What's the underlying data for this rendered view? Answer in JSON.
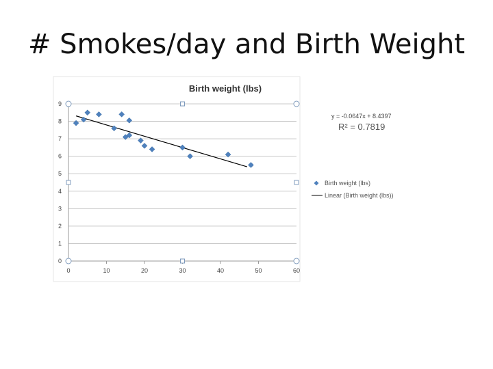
{
  "slide": {
    "title": "# Smokes/day and  Birth Weight"
  },
  "chart_data": {
    "type": "scatter",
    "title": "Birth weight (lbs)",
    "xlabel": "",
    "ylabel": "",
    "xlim": [
      0,
      60
    ],
    "ylim": [
      0,
      9
    ],
    "x_ticks": [
      "0",
      "10",
      "20",
      "30",
      "40",
      "50",
      "60"
    ],
    "y_ticks": [
      "0",
      "1",
      "2",
      "3",
      "4",
      "5",
      "6",
      "7",
      "8",
      "9"
    ],
    "grid": "horizontal",
    "series": [
      {
        "name": "Birth weight (lbs)",
        "marker": "diamond",
        "color": "#4f81bd",
        "x": [
          2,
          4,
          5,
          8,
          12,
          14,
          15,
          16,
          16,
          19,
          20,
          22,
          30,
          32,
          42,
          48
        ],
        "y": [
          7.9,
          8.1,
          8.5,
          8.4,
          7.6,
          8.4,
          7.1,
          8.05,
          7.2,
          6.9,
          6.6,
          6.4,
          6.5,
          6.0,
          6.1,
          5.5
        ]
      }
    ],
    "trendline": {
      "name": "Linear (Birth weight (lbs))",
      "slope": -0.0647,
      "intercept": 8.4397,
      "x_range": [
        2,
        47
      ],
      "equation": "y = -0.0647x + 8.4397",
      "r2": "R² = 0.7819",
      "color": "#000000"
    },
    "legend": {
      "position": "right",
      "items": [
        "Birth weight (lbs)",
        "Linear (Birth weight (lbs))"
      ]
    }
  }
}
